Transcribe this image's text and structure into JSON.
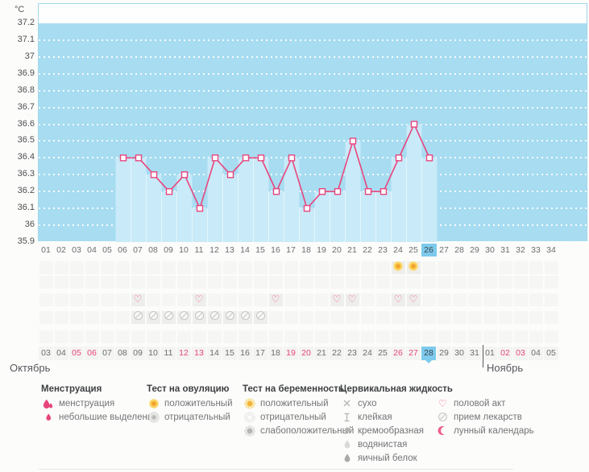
{
  "colors": {
    "accent_pink": "#e8457d",
    "plot_blue": "#a7dcf1",
    "fill_blue": "#c9eaf8",
    "highlight_blue": "#7dcaec",
    "weekend_red": "#e8457d"
  },
  "chart_data": {
    "type": "line",
    "title": "",
    "ylabel": "°C",
    "ylim": [
      35.9,
      37.2
    ],
    "ytick_step": 0.1,
    "yticks": [
      "37.2",
      "37.1",
      "37",
      "36.9",
      "36.8",
      "36.7",
      "36.6",
      "36.5",
      "36.4",
      "36.3",
      "36.2",
      "36.1",
      "36",
      "35.9"
    ],
    "x_range": [
      1,
      34
    ],
    "current_cycle_day": 26,
    "grid": "dotted-horizontal",
    "legend_position": "bottom",
    "series": [
      {
        "name": "temperature",
        "points": [
          [
            6,
            36.4
          ],
          [
            7,
            36.4
          ],
          [
            8,
            36.3
          ],
          [
            9,
            36.2
          ],
          [
            10,
            36.3
          ],
          [
            11,
            36.1
          ],
          [
            12,
            36.4
          ],
          [
            13,
            36.3
          ],
          [
            14,
            36.4
          ],
          [
            15,
            36.4
          ],
          [
            16,
            36.2
          ],
          [
            17,
            36.4
          ],
          [
            18,
            36.1
          ],
          [
            19,
            36.2
          ],
          [
            20,
            36.2
          ],
          [
            21,
            36.5
          ],
          [
            22,
            36.2
          ],
          [
            23,
            36.2
          ],
          [
            24,
            36.4
          ],
          [
            25,
            36.6
          ],
          [
            26,
            36.4
          ]
        ]
      }
    ]
  },
  "grid": {
    "cycle_days": [
      "01",
      "02",
      "03",
      "04",
      "05",
      "06",
      "07",
      "08",
      "09",
      "10",
      "11",
      "12",
      "13",
      "14",
      "15",
      "16",
      "17",
      "18",
      "19",
      "20",
      "21",
      "22",
      "23",
      "24",
      "25",
      "26",
      "27",
      "28",
      "29",
      "30",
      "31",
      "32",
      "33",
      "34"
    ],
    "rows": [
      {
        "name": "ovulation-test",
        "entries": [
          {
            "day": 24,
            "icon": "sun"
          },
          {
            "day": 25,
            "icon": "sun"
          }
        ]
      },
      {
        "name": "pregnancy-test",
        "entries": []
      },
      {
        "name": "intercourse",
        "entries": [
          {
            "day": 7,
            "icon": "heart"
          },
          {
            "day": 11,
            "icon": "heart"
          },
          {
            "day": 16,
            "icon": "heart"
          },
          {
            "day": 20,
            "icon": "heart"
          },
          {
            "day": 21,
            "icon": "heart"
          },
          {
            "day": 24,
            "icon": "heart"
          },
          {
            "day": 25,
            "icon": "heart"
          }
        ]
      },
      {
        "name": "medication",
        "entries": [
          {
            "day": 7,
            "icon": "pill"
          },
          {
            "day": 8,
            "icon": "pill"
          },
          {
            "day": 9,
            "icon": "pill"
          },
          {
            "day": 10,
            "icon": "pill"
          },
          {
            "day": 11,
            "icon": "pill"
          },
          {
            "day": 12,
            "icon": "pill"
          },
          {
            "day": 13,
            "icon": "pill"
          },
          {
            "day": 14,
            "icon": "pill"
          },
          {
            "day": 15,
            "icon": "pill"
          }
        ]
      },
      {
        "name": "cervical-fluid",
        "entries": []
      }
    ],
    "dates": [
      {
        "label": "03"
      },
      {
        "label": "04"
      },
      {
        "label": "05",
        "weekend": true
      },
      {
        "label": "06",
        "weekend": true
      },
      {
        "label": "07"
      },
      {
        "label": "08"
      },
      {
        "label": "09"
      },
      {
        "label": "10"
      },
      {
        "label": "11"
      },
      {
        "label": "12",
        "weekend": true
      },
      {
        "label": "13",
        "weekend": true
      },
      {
        "label": "14"
      },
      {
        "label": "15"
      },
      {
        "label": "16"
      },
      {
        "label": "17"
      },
      {
        "label": "18"
      },
      {
        "label": "19",
        "weekend": true
      },
      {
        "label": "20",
        "weekend": true
      },
      {
        "label": "21"
      },
      {
        "label": "22"
      },
      {
        "label": "23"
      },
      {
        "label": "24"
      },
      {
        "label": "25"
      },
      {
        "label": "26",
        "weekend": true
      },
      {
        "label": "27",
        "weekend": true
      },
      {
        "label": "28",
        "current": true
      },
      {
        "label": "29"
      },
      {
        "label": "30"
      },
      {
        "label": "31"
      },
      {
        "label": "01"
      },
      {
        "label": "02",
        "weekend": true
      },
      {
        "label": "03",
        "weekend": true
      },
      {
        "label": "04"
      },
      {
        "label": "05"
      }
    ],
    "months": [
      "Октябрь",
      "Ноябрь"
    ]
  },
  "legend": {
    "columns": [
      {
        "title": "Менструация",
        "items": [
          {
            "icon": "drops",
            "label": "менструация"
          },
          {
            "icon": "drop-small",
            "label": "небольшие выделения"
          }
        ]
      },
      {
        "title": "Тест на овуляцию",
        "items": [
          {
            "icon": "circle-positive",
            "label": "положительный"
          },
          {
            "icon": "circle-negative",
            "label": "отрицательный"
          }
        ]
      },
      {
        "title": "Тест на беременность",
        "items": [
          {
            "icon": "scallop-positive",
            "label": "положительный"
          },
          {
            "icon": "scallop-negative",
            "label": "отрицательный"
          },
          {
            "icon": "scallop-weak",
            "label": "слабоположительный"
          }
        ]
      },
      {
        "title": "Цервикальная жидкость",
        "items": [
          {
            "icon": "cross",
            "label": "сухо"
          },
          {
            "icon": "ibeam",
            "label": "клейкая"
          },
          {
            "icon": "comma",
            "label": "кремообразная"
          },
          {
            "icon": "drop-light",
            "label": "водянистая"
          },
          {
            "icon": "drop-dark",
            "label": "яичный белок"
          }
        ]
      },
      {
        "title": "",
        "items": [
          {
            "icon": "heart",
            "label": "половой акт"
          },
          {
            "icon": "pill",
            "label": "прием лекарств"
          },
          {
            "icon": "moon",
            "label": "лунный календарь"
          }
        ]
      }
    ]
  }
}
